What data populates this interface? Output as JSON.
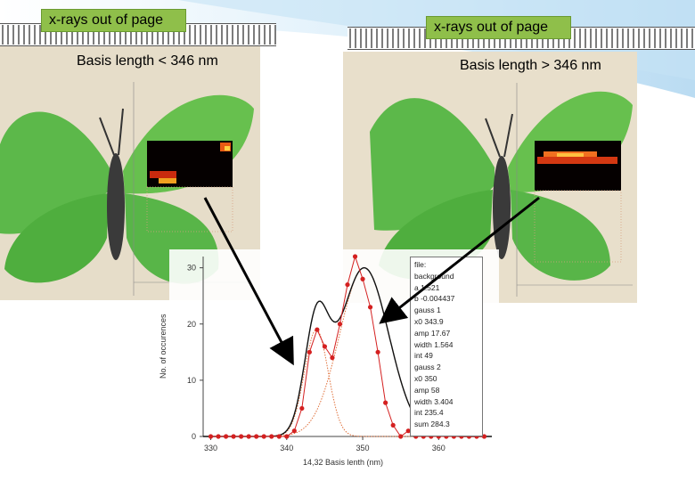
{
  "panels": {
    "left": {
      "xray_label": "x-rays out of page",
      "basis_label": "Basis length < 346 nm"
    },
    "right": {
      "xray_label": "x-rays out of page",
      "basis_label": "Basis length > 346 nm"
    }
  },
  "colors": {
    "label_bg": "#8fbf4a",
    "wing_green": "#5cb84a",
    "data_red": "#d42020",
    "fit_black": "#111111",
    "component_red": "#e0703a",
    "background_blue": "#d6ecf8"
  },
  "legend": {
    "lines": [
      "file:",
      "background",
      "a       1.521",
      "b   -0.004437",
      "gauss 1",
      "x0     343.9",
      "amp    17.67",
      "width      1.564",
      "int       49",
      "gauss 2",
      "x0     350",
      "amp     58",
      "width      3.404",
      "int    235.4",
      "sum    284.3"
    ]
  },
  "chart_data": {
    "type": "scatter",
    "title": "",
    "xlabel": "14,32 Basis lenth (nm)",
    "ylabel": "No. of occurences",
    "xlim": [
      329,
      367
    ],
    "ylim": [
      0,
      32
    ],
    "xticks": [
      330,
      340,
      350,
      360
    ],
    "yticks": [
      0,
      10,
      20,
      30
    ],
    "series": [
      {
        "style": "data-red-dots-connected",
        "x": [
          330,
          331,
          332,
          333,
          334,
          335,
          336,
          337,
          338,
          339,
          340,
          341,
          342,
          343,
          344,
          345,
          346,
          347,
          348,
          349,
          350,
          351,
          352,
          353,
          354,
          355,
          356,
          357,
          358,
          359,
          360,
          361,
          362,
          363,
          364,
          365,
          366
        ],
        "y": [
          0,
          0,
          0,
          0,
          0,
          0,
          0,
          0,
          0,
          0,
          0,
          1,
          5,
          15,
          19,
          16,
          14,
          20,
          27,
          32,
          28,
          23,
          15,
          6,
          2,
          0,
          1,
          0,
          0,
          0,
          0,
          0,
          0,
          0,
          0,
          0,
          0
        ]
      }
    ],
    "fit": {
      "background": {
        "a": 1.521,
        "b": -0.004437
      },
      "gauss1": {
        "x0": 343.9,
        "amp": 17.67,
        "width": 1.564,
        "int": 49
      },
      "gauss2": {
        "x0": 350,
        "amp": 58,
        "width": 3.404,
        "int": 235.4
      },
      "sum": 284.3
    }
  }
}
